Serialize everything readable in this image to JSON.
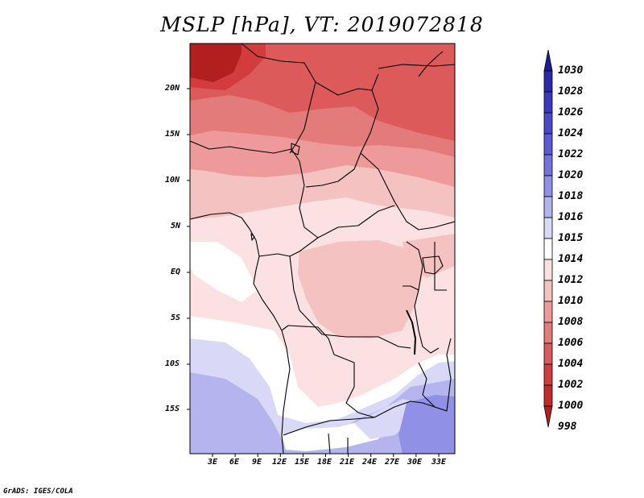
{
  "title": "MSLP [hPa], VT: 2019072818",
  "credit": "GrADS: IGES/COLA",
  "lat_labels": [
    "20N",
    "15N",
    "10N",
    "5N",
    "EQ",
    "5S",
    "10S",
    "15S"
  ],
  "lon_labels": [
    "3E",
    "6E",
    "9E",
    "12E",
    "15E",
    "18E",
    "21E",
    "24E",
    "27E",
    "30E",
    "33E"
  ],
  "colorbar": {
    "levels": [
      "1030",
      "1028",
      "1026",
      "1024",
      "1022",
      "1020",
      "1018",
      "1016",
      "1015",
      "1014",
      "1012",
      "1010",
      "1008",
      "1006",
      "1004",
      "1002",
      "1000",
      "998"
    ],
    "colors": [
      "#1f1b9c",
      "#2b28ae",
      "#3a37c0",
      "#4a49cc",
      "#5c5bd6",
      "#7474de",
      "#9091e6",
      "#b4b5ef",
      "#d9d9f7",
      "#ffffff",
      "#fbe1e1",
      "#f5c2c2",
      "#ee9a9a",
      "#e47b7b",
      "#dd5a5a",
      "#d23c3c",
      "#c42a2a",
      "#b11f1f"
    ]
  },
  "map_colors": {
    "p998": "#b11f1f",
    "p1002": "#d23c3c",
    "p1004": "#dd5a5a",
    "p1006": "#e47b7b",
    "p1008": "#ee9a9a",
    "p1010": "#f5c2c2",
    "p1012": "#fbe1e1",
    "p1014": "#ffffff",
    "p1016": "#d9d9f7",
    "p1018": "#b4b5ef",
    "p1020": "#9091e6"
  }
}
